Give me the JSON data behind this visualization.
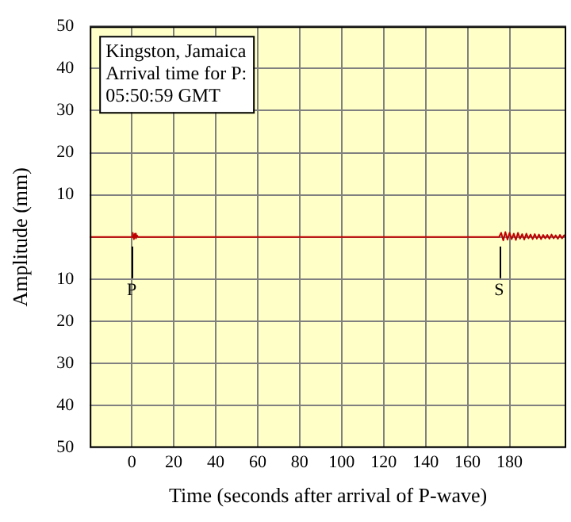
{
  "chart_data": {
    "type": "line",
    "xlabel": "Time (seconds after arrival of P-wave)",
    "ylabel": "Amplitude (mm)",
    "xlim": [
      -20,
      207
    ],
    "xticks": [
      0,
      20,
      40,
      60,
      80,
      100,
      120,
      140,
      160,
      180
    ],
    "ylim": [
      -50,
      50
    ],
    "yticks": [
      {
        "value": -50,
        "label": "50"
      },
      {
        "value": -40,
        "label": "40"
      },
      {
        "value": -30,
        "label": "30"
      },
      {
        "value": -20,
        "label": "20"
      },
      {
        "value": -10,
        "label": "10"
      },
      {
        "value": 0,
        "label": null
      },
      10,
      20,
      30,
      40,
      50
    ],
    "grid": true,
    "marker": "none",
    "line_style": "solid",
    "series": [
      {
        "color": "#c00000",
        "x": [
          -20,
          0,
          0.5,
          1,
          1.5,
          2,
          2.5,
          3,
          175,
          176,
          177,
          178,
          179,
          180,
          181,
          182,
          183,
          184,
          185,
          186,
          187,
          188,
          189,
          190,
          191,
          192,
          193,
          194,
          195,
          196,
          197,
          198,
          199,
          200,
          201,
          202,
          203,
          204,
          205,
          206,
          207
        ],
        "values": [
          0,
          0,
          1,
          -0.5,
          0.8,
          -0.3,
          0.4,
          0,
          0,
          1,
          -0.8,
          1.2,
          -0.6,
          1,
          -0.5,
          0.8,
          -0.7,
          1,
          -0.4,
          0.7,
          -0.6,
          0.8,
          -0.3,
          0.6,
          -0.5,
          0.7,
          -0.4,
          0.6,
          -0.5,
          0.5,
          -0.3,
          0.5,
          -0.4,
          0.6,
          -0.3,
          0.4,
          -0.4,
          0.5,
          -0.3,
          0.4,
          0
        ]
      }
    ],
    "annotations": [
      {
        "text": "P",
        "x": 0,
        "y": 0
      },
      {
        "text": "S",
        "x": 175,
        "y": 0
      },
      "Kingston, Jamaica\nArrival time for P:\n05:50:59 GMT"
    ]
  }
}
